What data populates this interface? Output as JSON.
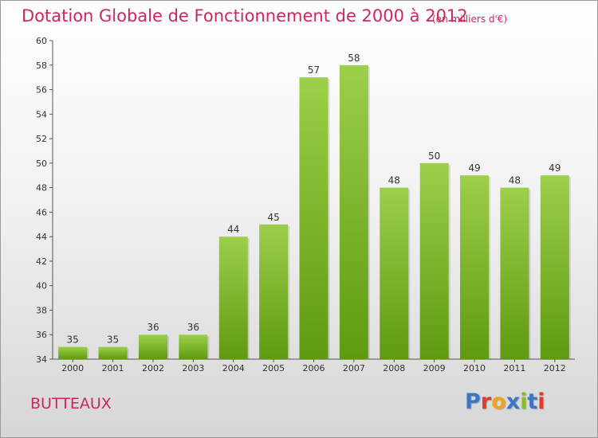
{
  "header": {
    "title": "Dotation Globale de Fonctionnement de 2000 à 2012",
    "subtitle": "(en milliers d'€)"
  },
  "footer": {
    "commune": "BUTTEAUX",
    "brand": "Proxiti"
  },
  "colors": {
    "title": "#d0265a",
    "bar_top": "#9ccf4a",
    "bar_bottom": "#5f9a10",
    "brand_letters": [
      "#3b78c3",
      "#e03a2f",
      "#f2a31b",
      "#3b78c3",
      "#8bbd2a",
      "#3b78c3",
      "#e03a2f"
    ]
  },
  "chart_data": {
    "type": "bar",
    "title": "Dotation Globale de Fonctionnement de 2000 à 2012",
    "subtitle": "(en milliers d'€)",
    "categories": [
      "2000",
      "2001",
      "2002",
      "2003",
      "2004",
      "2005",
      "2006",
      "2007",
      "2008",
      "2009",
      "2010",
      "2011",
      "2012"
    ],
    "values": [
      35,
      35,
      36,
      36,
      44,
      45,
      57,
      58,
      48,
      50,
      49,
      48,
      49
    ],
    "ylim": [
      34,
      60
    ],
    "yticks": [
      34,
      36,
      38,
      40,
      42,
      44,
      46,
      48,
      50,
      52,
      54,
      56,
      58,
      60
    ],
    "data_labels": true,
    "grid": false
  }
}
